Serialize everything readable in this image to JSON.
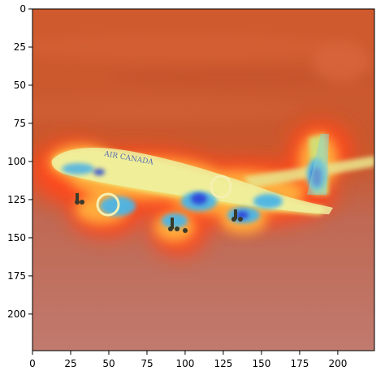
{
  "image": {
    "caption_text": "AIR CANADA",
    "description_kind": "heatmap-overlay-photo",
    "colors": {
      "background_wash": "#c95b37",
      "lower_wash": "#c27462",
      "hot": "#ff3b16",
      "warm": "#ffb13d",
      "yellow": "#f5ef68",
      "cool": "#4bb5e6",
      "cold": "#2d45d9",
      "fuselage": "#eef0a0"
    }
  },
  "axes": {
    "x_ticks": [
      "0",
      "25",
      "50",
      "75",
      "100",
      "125",
      "150",
      "175",
      "200"
    ],
    "y_ticks": [
      "0",
      "25",
      "50",
      "75",
      "100",
      "125",
      "150",
      "175",
      "200"
    ],
    "xlim": [
      0,
      224
    ],
    "ylim": [
      224,
      0
    ]
  }
}
